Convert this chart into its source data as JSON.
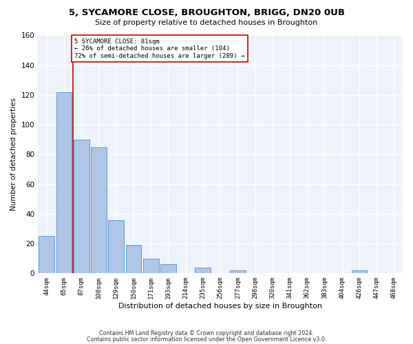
{
  "title": "5, SYCAMORE CLOSE, BROUGHTON, BRIGG, DN20 0UB",
  "subtitle": "Size of property relative to detached houses in Broughton",
  "xlabel": "Distribution of detached houses by size in Broughton",
  "ylabel": "Number of detached properties",
  "categories": [
    "44sqm",
    "65sqm",
    "87sqm",
    "108sqm",
    "129sqm",
    "150sqm",
    "171sqm",
    "193sqm",
    "214sqm",
    "235sqm",
    "256sqm",
    "277sqm",
    "298sqm",
    "320sqm",
    "341sqm",
    "362sqm",
    "383sqm",
    "404sqm",
    "426sqm",
    "447sqm",
    "468sqm"
  ],
  "values": [
    25,
    122,
    90,
    85,
    36,
    19,
    10,
    6,
    0,
    4,
    0,
    2,
    0,
    0,
    0,
    0,
    0,
    0,
    2,
    0,
    0
  ],
  "bar_color": "#aec6e8",
  "bar_edge_color": "#5b9bd5",
  "background_color": "#eef2fb",
  "grid_color": "#ffffff",
  "ylim": [
    0,
    160
  ],
  "yticks": [
    0,
    20,
    40,
    60,
    80,
    100,
    120,
    140,
    160
  ],
  "vline_color": "#cc0000",
  "annotation_text": "5 SYCAMORE CLOSE: 81sqm\n← 26% of detached houses are smaller (104)\n72% of semi-detached houses are larger (289) →",
  "annotation_box_color": "#ffffff",
  "annotation_box_edge_color": "#cc0000",
  "footer_line1": "Contains HM Land Registry data © Crown copyright and database right 2024.",
  "footer_line2": "Contains public sector information licensed under the Open Government Licence v3.0."
}
